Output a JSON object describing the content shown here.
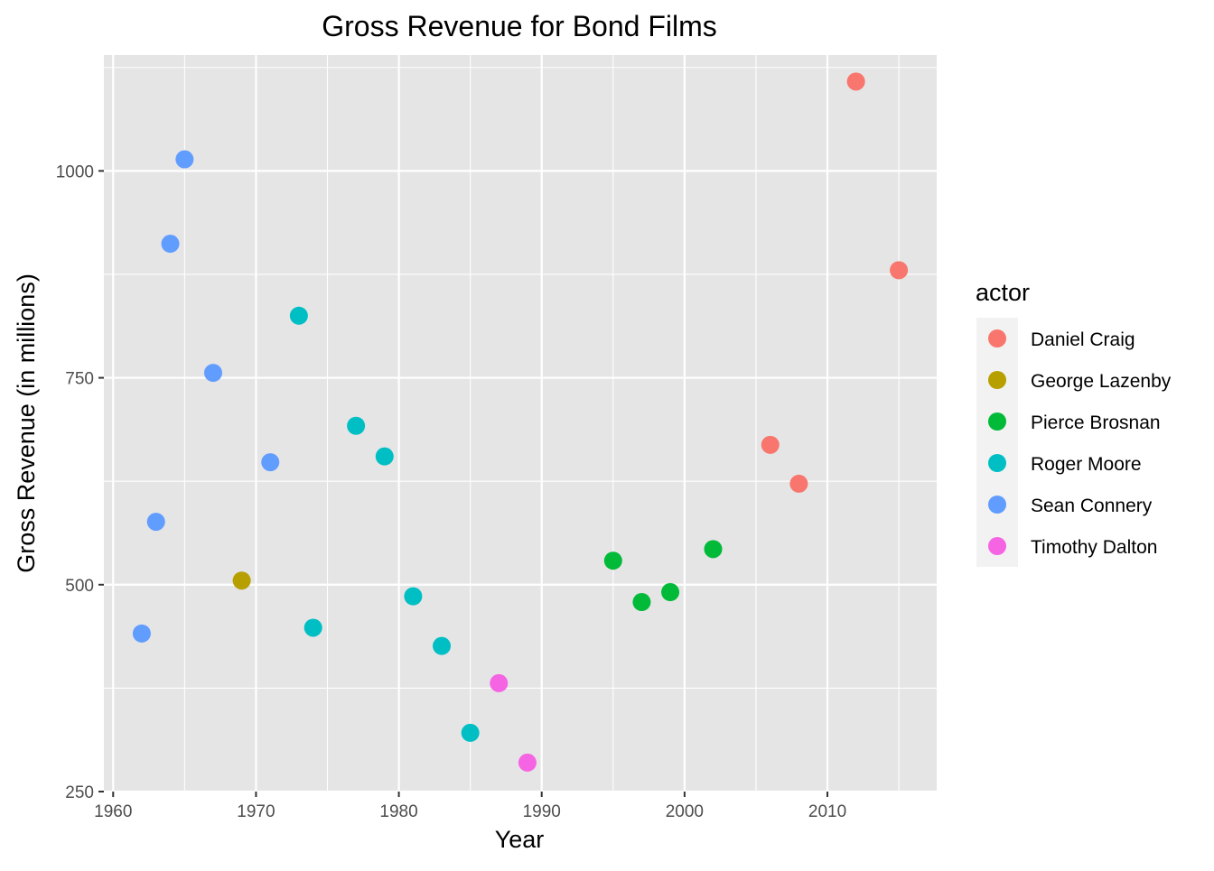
{
  "chart_data": {
    "type": "scatter",
    "title": "Gross Revenue for Bond Films",
    "xlabel": "Year",
    "ylabel": "Gross Revenue (in millions)",
    "xlim": [
      1959.35,
      2017.65
    ],
    "ylim": [
      250,
      1140
    ],
    "x_ticks": [
      1960,
      1970,
      1980,
      1990,
      2000,
      2010
    ],
    "y_ticks": [
      250,
      500,
      750,
      1000
    ],
    "grid": true,
    "legend": {
      "title": "actor",
      "placement": "right",
      "entries": [
        "Daniel Craig",
        "George Lazenby",
        "Pierce Brosnan",
        "Roger Moore",
        "Sean Connery",
        "Timothy Dalton"
      ]
    },
    "colors": {
      "panel_background": "#e5e5e5",
      "grid": "#ffffff",
      "legend_key_background": "#f2f2f2"
    },
    "series": [
      {
        "name": "Daniel Craig",
        "color": "#f8766d",
        "points": [
          {
            "x": 2006,
            "y": 669
          },
          {
            "x": 2008,
            "y": 622
          },
          {
            "x": 2012,
            "y": 1108
          },
          {
            "x": 2015,
            "y": 880
          }
        ]
      },
      {
        "name": "George Lazenby",
        "color": "#b79f00",
        "points": [
          {
            "x": 1969,
            "y": 505
          }
        ]
      },
      {
        "name": "Pierce Brosnan",
        "color": "#00ba38",
        "points": [
          {
            "x": 1995,
            "y": 529
          },
          {
            "x": 1997,
            "y": 479
          },
          {
            "x": 1999,
            "y": 491
          },
          {
            "x": 2002,
            "y": 543
          }
        ]
      },
      {
        "name": "Roger Moore",
        "color": "#00bfc4",
        "points": [
          {
            "x": 1973,
            "y": 825
          },
          {
            "x": 1974,
            "y": 448
          },
          {
            "x": 1977,
            "y": 692
          },
          {
            "x": 1979,
            "y": 655
          },
          {
            "x": 1981,
            "y": 486
          },
          {
            "x": 1983,
            "y": 426
          },
          {
            "x": 1985,
            "y": 321
          }
        ]
      },
      {
        "name": "Sean Connery",
        "color": "#619cff",
        "points": [
          {
            "x": 1962,
            "y": 441
          },
          {
            "x": 1963,
            "y": 576
          },
          {
            "x": 1964,
            "y": 912
          },
          {
            "x": 1965,
            "y": 1014
          },
          {
            "x": 1967,
            "y": 756
          },
          {
            "x": 1971,
            "y": 648
          }
        ]
      },
      {
        "name": "Timothy Dalton",
        "color": "#f564e3",
        "points": [
          {
            "x": 1987,
            "y": 381
          },
          {
            "x": 1989,
            "y": 285
          }
        ]
      }
    ]
  }
}
